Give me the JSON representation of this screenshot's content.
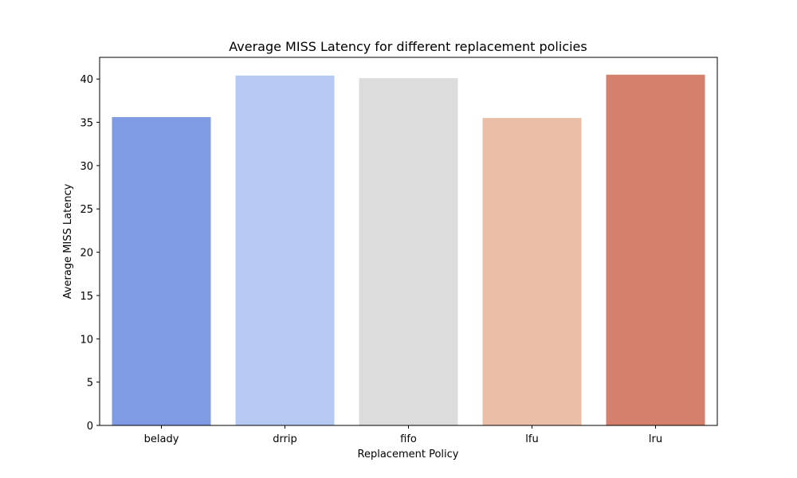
{
  "chart_data": {
    "type": "bar",
    "title": "Average MISS Latency for different replacement policies",
    "xlabel": "Replacement Policy",
    "ylabel": "Average MISS Latency",
    "categories": [
      "belady",
      "drrip",
      "fifo",
      "lfu",
      "lru"
    ],
    "values": [
      35.6,
      40.4,
      40.1,
      35.5,
      40.5
    ],
    "colors": [
      "#7f9be3",
      "#b6c9f3",
      "#dcdcdc",
      "#ebbea7",
      "#d5806c"
    ],
    "ylim": [
      0,
      42.5
    ],
    "yticks": [
      0,
      5,
      10,
      15,
      20,
      25,
      30,
      35,
      40
    ],
    "grid": false,
    "legend": "none"
  }
}
